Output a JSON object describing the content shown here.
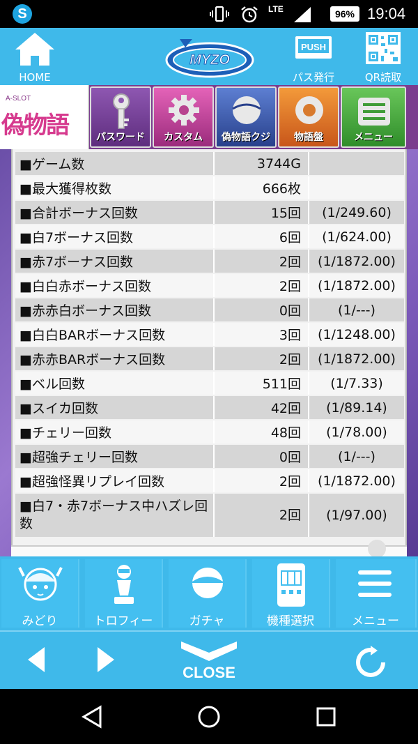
{
  "status_bar": {
    "network": "LTE",
    "battery": "96%",
    "time": "19:04"
  },
  "header": {
    "home_label": "HOME",
    "logo_text": "MYZO",
    "pass_label": "パス発行",
    "pass_badge": "PUSH",
    "qr_label": "QR読取"
  },
  "slot_bar": {
    "logo_small": "A-SLOT",
    "logo_title": "偽物語",
    "tabs": [
      {
        "label": "パスワード"
      },
      {
        "label": "カスタム"
      },
      {
        "label": "偽物語クジ"
      },
      {
        "label": "物語盤"
      },
      {
        "label": "メニュー"
      }
    ]
  },
  "stats": [
    {
      "name": "■ゲーム数",
      "count": "3744G",
      "rate": ""
    },
    {
      "name": "■最大獲得枚数",
      "count": "666枚",
      "rate": ""
    },
    {
      "name": "■合計ボーナス回数",
      "count": "15回",
      "rate": "(1/249.60)"
    },
    {
      "name": "■白7ボーナス回数",
      "count": "6回",
      "rate": "(1/624.00)"
    },
    {
      "name": "■赤7ボーナス回数",
      "count": "2回",
      "rate": "(1/1872.00)"
    },
    {
      "name": "■白白赤ボーナス回数",
      "count": "2回",
      "rate": "(1/1872.00)"
    },
    {
      "name": "■赤赤白ボーナス回数",
      "count": "0回",
      "rate": "(1/---)"
    },
    {
      "name": "■白白BARボーナス回数",
      "count": "3回",
      "rate": "(1/1248.00)"
    },
    {
      "name": "■赤赤BARボーナス回数",
      "count": "2回",
      "rate": "(1/1872.00)"
    },
    {
      "name": "■ベル回数",
      "count": "511回",
      "rate": "(1/7.33)"
    },
    {
      "name": "■スイカ回数",
      "count": "42回",
      "rate": "(1/89.14)"
    },
    {
      "name": "■チェリー回数",
      "count": "48回",
      "rate": "(1/78.00)"
    },
    {
      "name": "■超強チェリー回数",
      "count": "0回",
      "rate": "(1/---)"
    },
    {
      "name": "■超強怪異リプレイ回数",
      "count": "2回",
      "rate": "(1/1872.00)"
    },
    {
      "name": "■白7・赤7ボーナス中ハズレ回数",
      "count": "2回",
      "rate": "(1/97.00)"
    }
  ],
  "bottom_nav": {
    "items": [
      {
        "label": "みどり"
      },
      {
        "label": "トロフィー"
      },
      {
        "label": "ガチャ"
      },
      {
        "label": "機種選択"
      },
      {
        "label": "メニュー"
      }
    ]
  },
  "controls": {
    "close_label": "CLOSE"
  }
}
